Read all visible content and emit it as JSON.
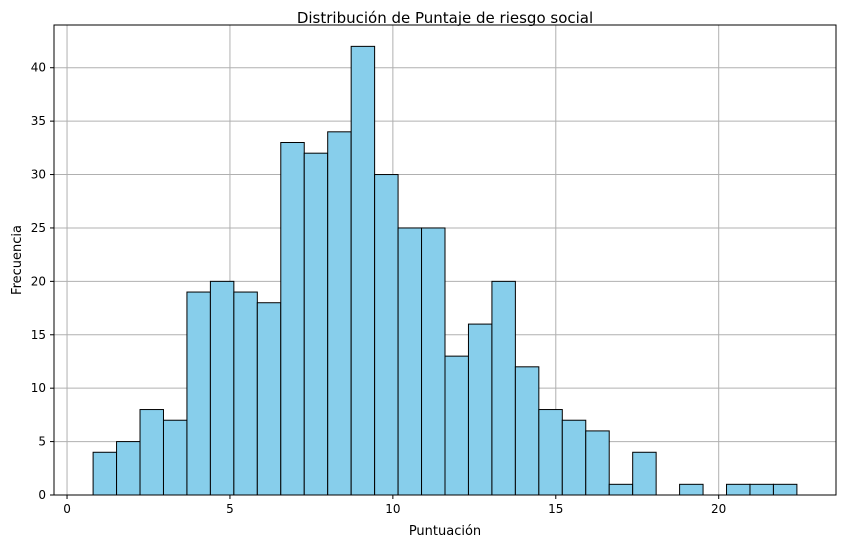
{
  "chart_data": {
    "type": "bar",
    "title": "Distribución de Puntaje de riesgo social",
    "xlabel": "Puntuación",
    "ylabel": "Frecuencia",
    "xlim": [
      -0.4,
      23.6
    ],
    "ylim": [
      0,
      44
    ],
    "xticks": [
      0,
      5,
      10,
      15,
      20
    ],
    "yticks": [
      0,
      5,
      10,
      15,
      20,
      25,
      30,
      35,
      40
    ],
    "grid": true,
    "bar_color": "#87ceeb",
    "edge_color": "#000000",
    "bins": [
      {
        "x0": 0.8,
        "x1": 1.52,
        "count": 4
      },
      {
        "x0": 1.52,
        "x1": 2.24,
        "count": 5
      },
      {
        "x0": 2.24,
        "x1": 2.96,
        "count": 8
      },
      {
        "x0": 2.96,
        "x1": 3.68,
        "count": 7
      },
      {
        "x0": 3.68,
        "x1": 4.4,
        "count": 19
      },
      {
        "x0": 4.4,
        "x1": 5.12,
        "count": 20
      },
      {
        "x0": 5.12,
        "x1": 5.84,
        "count": 19
      },
      {
        "x0": 5.84,
        "x1": 6.56,
        "count": 18
      },
      {
        "x0": 6.56,
        "x1": 7.28,
        "count": 33
      },
      {
        "x0": 7.28,
        "x1": 8.0,
        "count": 32
      },
      {
        "x0": 8.0,
        "x1": 8.72,
        "count": 34
      },
      {
        "x0": 8.72,
        "x1": 9.44,
        "count": 42
      },
      {
        "x0": 9.44,
        "x1": 10.16,
        "count": 30
      },
      {
        "x0": 10.16,
        "x1": 10.88,
        "count": 25
      },
      {
        "x0": 10.88,
        "x1": 11.6,
        "count": 25
      },
      {
        "x0": 11.6,
        "x1": 12.32,
        "count": 13
      },
      {
        "x0": 12.32,
        "x1": 13.04,
        "count": 16
      },
      {
        "x0": 13.04,
        "x1": 13.76,
        "count": 20
      },
      {
        "x0": 13.76,
        "x1": 14.48,
        "count": 12
      },
      {
        "x0": 14.48,
        "x1": 15.2,
        "count": 8
      },
      {
        "x0": 15.2,
        "x1": 15.92,
        "count": 7
      },
      {
        "x0": 15.92,
        "x1": 16.64,
        "count": 6
      },
      {
        "x0": 16.64,
        "x1": 17.36,
        "count": 1
      },
      {
        "x0": 17.36,
        "x1": 18.08,
        "count": 4
      },
      {
        "x0": 18.08,
        "x1": 18.8,
        "count": 0
      },
      {
        "x0": 18.8,
        "x1": 19.52,
        "count": 1
      },
      {
        "x0": 19.52,
        "x1": 20.24,
        "count": 0
      },
      {
        "x0": 20.24,
        "x1": 20.96,
        "count": 1
      },
      {
        "x0": 20.96,
        "x1": 21.68,
        "count": 1
      },
      {
        "x0": 21.68,
        "x1": 22.4,
        "count": 1
      }
    ]
  }
}
